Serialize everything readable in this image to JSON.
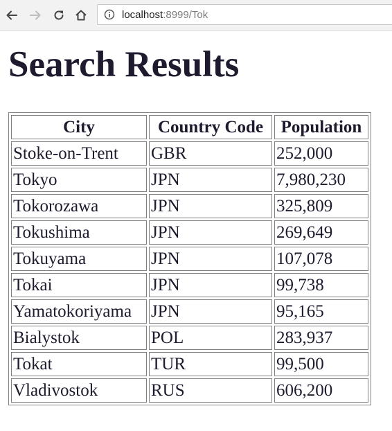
{
  "browser": {
    "url_host": "localhost",
    "url_rest": ":8999/Tok",
    "icons": {
      "back": "back-arrow-icon",
      "forward": "forward-arrow-icon",
      "reload": "reload-icon",
      "home": "home-icon",
      "info": "info-icon"
    }
  },
  "page": {
    "title": "Search Results"
  },
  "table": {
    "headers": [
      "City",
      "Country Code",
      "Population"
    ],
    "rows": [
      [
        "Stoke-on-Trent",
        "GBR",
        "252,000"
      ],
      [
        "Tokyo",
        "JPN",
        "7,980,230"
      ],
      [
        "Tokorozawa",
        "JPN",
        "325,809"
      ],
      [
        "Tokushima",
        "JPN",
        "269,649"
      ],
      [
        "Tokuyama",
        "JPN",
        "107,078"
      ],
      [
        "Tokai",
        "JPN",
        "99,738"
      ],
      [
        "Yamatokoriyama",
        "JPN",
        "95,165"
      ],
      [
        "Bialystok",
        "POL",
        "283,937"
      ],
      [
        "Tokat",
        "TUR",
        "99,500"
      ],
      [
        "Vladivostok",
        "RUS",
        "606,200"
      ]
    ]
  },
  "colors": {
    "text": "#1f1a2e",
    "border": "#808080",
    "toolbar": "#f2f2f2"
  }
}
